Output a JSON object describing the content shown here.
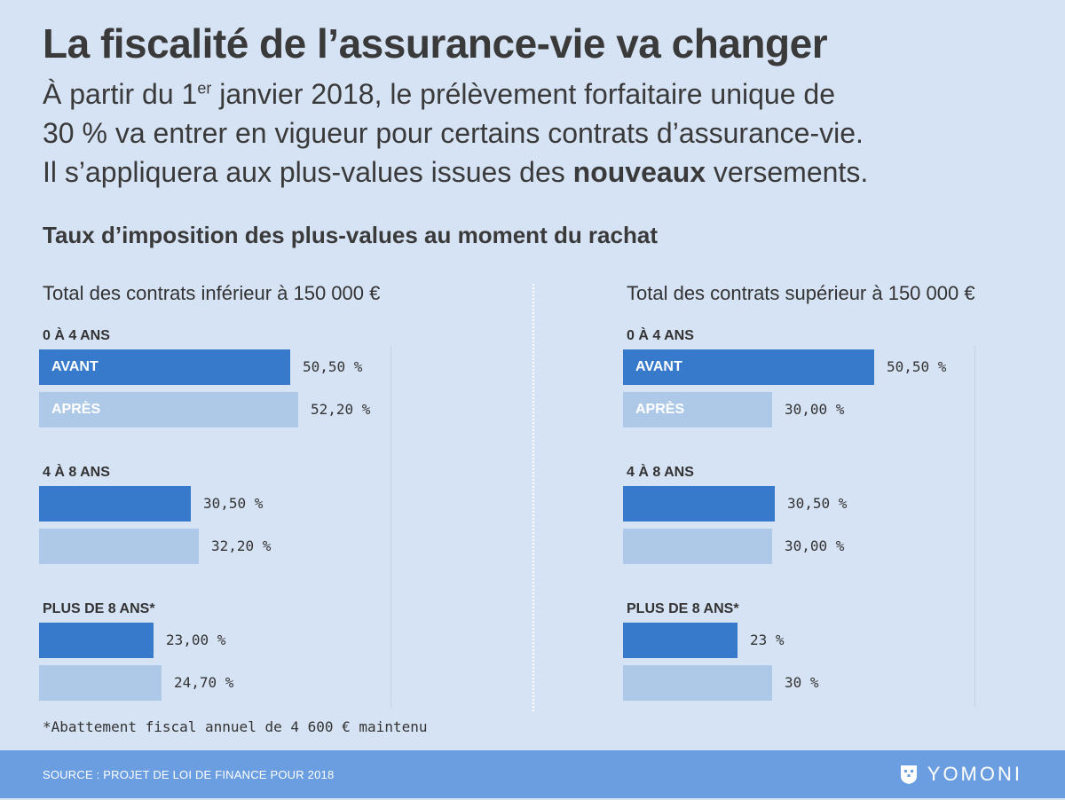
{
  "header": {
    "title": "La fiscalité de l’assurance-vie va changer",
    "intro_line1_a": "À partir du 1",
    "intro_line1_sup": "er",
    "intro_line1_b": " janvier 2018, le prélèvement forfaitaire unique de",
    "intro_line2": "30 % va entrer en vigueur pour certains contrats d’assurance-vie.",
    "intro_line3_a": "Il s’appliquera aux plus-values issues des ",
    "intro_line3_bold": "nouveaux",
    "intro_line3_b": " versements."
  },
  "footnote": "*Abattement fiscal annuel de 4 600 € maintenu",
  "footer": {
    "source": "SOURCE : PROJET DE LOI DE FINANCE POUR 2018",
    "brand": "YOMONI",
    "brand_icon": "yomoni-logo-icon"
  },
  "colors": {
    "avant": "#3779cb",
    "apres": "#aec9e7",
    "background": "#d6e3f4",
    "footer": "#6a9ee0"
  },
  "chart_data": {
    "type": "bar",
    "orientation": "horizontal",
    "title": "Taux d’imposition des plus-values au moment du rachat",
    "series_names": [
      "AVANT",
      "APRÈS"
    ],
    "panels": [
      {
        "title": "Total des contrats inférieur à 150 000 €",
        "groups": [
          {
            "label": "0 À 4 ANS",
            "avant": {
              "value": 50.5,
              "text": "50,50 %"
            },
            "apres": {
              "value": 52.2,
              "text": "52,20 %"
            }
          },
          {
            "label": "4 À 8 ANS",
            "avant": {
              "value": 30.5,
              "text": "30,50 %"
            },
            "apres": {
              "value": 32.2,
              "text": "32,20 %"
            }
          },
          {
            "label": "PLUS DE 8 ANS*",
            "avant": {
              "value": 23.0,
              "text": "23,00 %"
            },
            "apres": {
              "value": 24.7,
              "text": "24,70 %"
            }
          }
        ]
      },
      {
        "title": "Total des contrats supérieur à 150 000 €",
        "groups": [
          {
            "label": "0 À 4 ANS",
            "avant": {
              "value": 50.5,
              "text": "50,50 %"
            },
            "apres": {
              "value": 30.0,
              "text": "30,00 %"
            }
          },
          {
            "label": "4 À 8 ANS",
            "avant": {
              "value": 30.5,
              "text": "30,50 %"
            },
            "apres": {
              "value": 30.0,
              "text": "30,00 %"
            }
          },
          {
            "label": "PLUS DE 8 ANS*",
            "avant": {
              "value": 23.0,
              "text": "23 %"
            },
            "apres": {
              "value": 30.0,
              "text": "30 %"
            }
          }
        ]
      }
    ]
  }
}
